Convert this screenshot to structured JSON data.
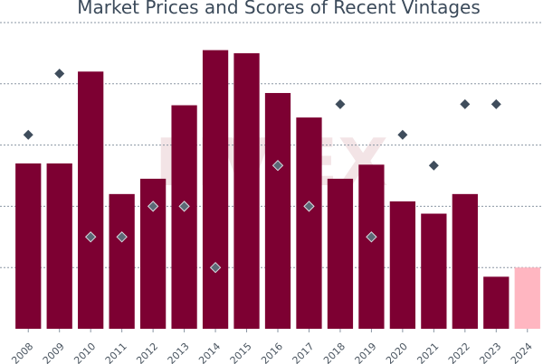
{
  "chart_data": {
    "type": "bar",
    "title": "Market Prices and Scores of Recent Vintages",
    "categories": [
      "2008",
      "2009",
      "2010",
      "2011",
      "2012",
      "2013",
      "2014",
      "2015",
      "2016",
      "2017",
      "2018",
      "2019",
      "2020",
      "2021",
      "2022",
      "2023",
      "2024"
    ],
    "series": [
      {
        "kind": "bar",
        "values": [
          270,
          270,
          420,
          220,
          245,
          365,
          455,
          450,
          385,
          345,
          245,
          268,
          208,
          188,
          220,
          85,
          100
        ],
        "colors": [
          "#7d0032",
          "#7d0032",
          "#7d0032",
          "#7d0032",
          "#7d0032",
          "#7d0032",
          "#7d0032",
          "#7d0032",
          "#7d0032",
          "#7d0032",
          "#7d0032",
          "#7d0032",
          "#7d0032",
          "#7d0032",
          "#7d0032",
          "#7d0032",
          "#ffb6c1"
        ]
      },
      {
        "kind": "scatter",
        "values": [
          93,
          99,
          83,
          83,
          86,
          86,
          80,
          null,
          90,
          86,
          null,
          83,
          93,
          90,
          null,
          null,
          null
        ],
        "colors": [
          "#3f4d5c",
          "#3f4d5c",
          "#5c6976",
          "#5c6976",
          "#5c6976",
          "#5c6976",
          "#5c6976",
          null,
          "#5c6976",
          "#5c6976",
          null,
          "#5c6976",
          "#3f4d5c",
          "#3f4d5c",
          null,
          null,
          null
        ]
      },
      {
        "kind": "scatter",
        "values": [
          null,
          null,
          null,
          null,
          null,
          null,
          null,
          null,
          null,
          null,
          96,
          null,
          null,
          null,
          96,
          96,
          null
        ],
        "colors": [
          null,
          null,
          null,
          null,
          null,
          null,
          null,
          null,
          null,
          null,
          "#3f4d5c",
          null,
          null,
          null,
          "#3f4d5c",
          "#3f4d5c",
          null
        ]
      }
    ],
    "y_left": {
      "min": 0,
      "max": 500,
      "grid_values": [
        100,
        200,
        300,
        400,
        500
      ]
    },
    "y_right": {
      "min": 74,
      "max": 104
    },
    "xtick_rotation": -45,
    "grid": true,
    "watermark": "LIV-EX"
  }
}
